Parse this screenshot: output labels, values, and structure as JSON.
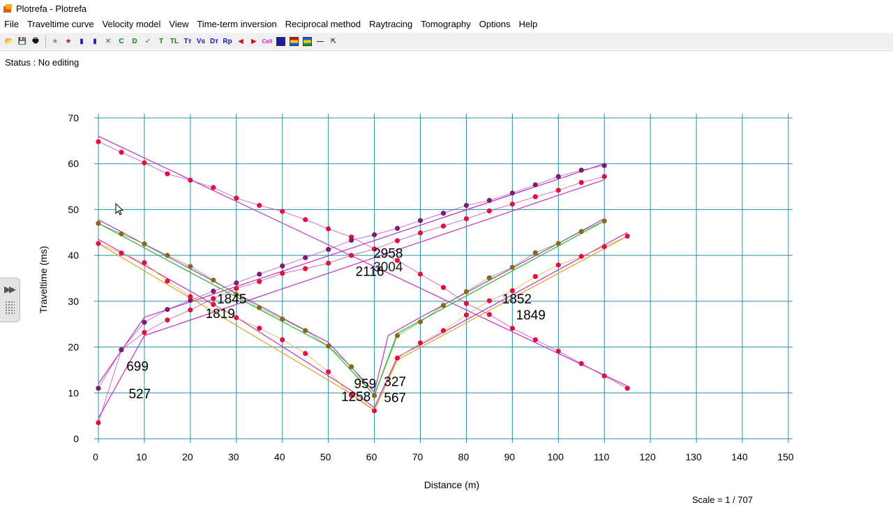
{
  "window": {
    "title": "Plotrefa - Plotrefa"
  },
  "menu": [
    "File",
    "Traveltime curve",
    "Velocity model",
    "View",
    "Time-term inversion",
    "Reciprocal method",
    "Raytracing",
    "Tomography",
    "Options",
    "Help"
  ],
  "toolbar": {
    "buttons": [
      {
        "name": "open-icon",
        "glyph": "📂"
      },
      {
        "name": "save-icon",
        "glyph": "💾"
      },
      {
        "name": "print-icon",
        "glyph": "🖶"
      },
      {
        "sep": true
      },
      {
        "name": "star-gray-icon",
        "glyph": "★",
        "color": "#888888"
      },
      {
        "name": "star-red-icon",
        "glyph": "★",
        "color": "#d0101a"
      },
      {
        "name": "shot-button-1",
        "glyph": "▮",
        "color": "#1a1ab0"
      },
      {
        "name": "shot-button-2",
        "glyph": "▮",
        "color": "#1a1ab0"
      },
      {
        "name": "delete-shot-button",
        "glyph": "✕",
        "color": "#108010"
      },
      {
        "name": "c-button",
        "glyph": "C",
        "color": "#108010"
      },
      {
        "name": "d-button",
        "glyph": "D",
        "color": "#108010"
      },
      {
        "name": "check-button",
        "glyph": "✓",
        "color": "#108010"
      },
      {
        "name": "t-button",
        "glyph": "T",
        "color": "#108010"
      },
      {
        "name": "tl-button",
        "glyph": "TL",
        "color": "#108010"
      },
      {
        "name": "tt-button",
        "glyph": "Tт",
        "color": "#1a1ab0"
      },
      {
        "name": "vs-button",
        "glyph": "Vs",
        "color": "#1a1ab0"
      },
      {
        "name": "dt-button",
        "glyph": "Dт",
        "color": "#1a1ab0"
      },
      {
        "name": "rp-button",
        "glyph": "Rp",
        "color": "#1a1ab0"
      },
      {
        "name": "arrow-left-icon",
        "glyph": "◀",
        "color": "#d0101a"
      },
      {
        "name": "arrow-right-icon",
        "glyph": "▶",
        "color": "#d0101a"
      },
      {
        "name": "cell-button",
        "glyph": "Cell",
        "color": "#d020d0"
      },
      {
        "name": "color-square-blue",
        "swatch": "#1a1ab0"
      },
      {
        "name": "color-square-rainbow-1",
        "swatch": "rainbow"
      },
      {
        "name": "color-square-rainbow-2",
        "swatch": "rainbow2"
      },
      {
        "name": "line-icon",
        "glyph": "—",
        "color": "#333333"
      },
      {
        "name": "pointer-icon",
        "glyph": "⇱",
        "color": "#333333"
      }
    ]
  },
  "status": {
    "text": "Status : No editing"
  },
  "scale": {
    "text": "Scale = 1 / 707"
  },
  "chart_data": {
    "type": "scatter",
    "xlabel": "Distance (m)",
    "ylabel": "Traveltime (ms)",
    "xlim": [
      0,
      150
    ],
    "ylim": [
      0,
      70
    ],
    "xticks": [
      0,
      10,
      20,
      30,
      40,
      50,
      60,
      70,
      80,
      90,
      100,
      110,
      120,
      130,
      140,
      150
    ],
    "yticks": [
      0,
      10,
      20,
      30,
      40,
      50,
      60,
      70
    ],
    "grid": true,
    "grid_color": "#2a8ca8",
    "series": [
      {
        "obs_color": "#e01040",
        "line_color": "#c030c0",
        "obs": [
          [
            0,
            64.8
          ],
          [
            5,
            62.5
          ],
          [
            10,
            60.2
          ],
          [
            15,
            57.8
          ],
          [
            20,
            56.4
          ],
          [
            25,
            54.8
          ],
          [
            30,
            52.5
          ],
          [
            35,
            50.9
          ],
          [
            40,
            49.6
          ],
          [
            45,
            47.8
          ],
          [
            50,
            45.8
          ],
          [
            55,
            44.0
          ],
          [
            60,
            41.4
          ],
          [
            65,
            38.9
          ],
          [
            70,
            35.9
          ],
          [
            75,
            33.0
          ],
          [
            80,
            29.5
          ],
          [
            85,
            27.1
          ],
          [
            90,
            24.1
          ],
          [
            95,
            21.6
          ],
          [
            100,
            19.1
          ],
          [
            105,
            16.4
          ],
          [
            110,
            13.7
          ],
          [
            115,
            11.0
          ]
        ],
        "calc": [
          [
            0,
            66.0
          ],
          [
            115,
            11.5
          ]
        ]
      },
      {
        "obs_color": "#e01040",
        "line_color": "#c030c0",
        "obs": [
          [
            0,
            3.5
          ],
          [
            5,
            19.4
          ],
          [
            10,
            23.2
          ],
          [
            15,
            25.9
          ],
          [
            20,
            28.1
          ],
          [
            25,
            30.6
          ],
          [
            30,
            32.8
          ],
          [
            35,
            34.3
          ],
          [
            40,
            36.1
          ],
          [
            45,
            37.1
          ],
          [
            50,
            38.3
          ],
          [
            55,
            40.0
          ],
          [
            60,
            41.4
          ],
          [
            65,
            43.2
          ],
          [
            70,
            44.9
          ],
          [
            75,
            46.4
          ],
          [
            80,
            48.0
          ],
          [
            85,
            49.7
          ],
          [
            90,
            51.2
          ],
          [
            95,
            52.8
          ],
          [
            100,
            54.2
          ],
          [
            105,
            55.9
          ],
          [
            110,
            57.2
          ]
        ],
        "calc": [
          [
            0,
            4.5
          ],
          [
            10,
            22.5
          ],
          [
            110,
            56.5
          ]
        ]
      },
      {
        "obs_color": "#7a1f6e",
        "line_color": "#c030c0",
        "obs": [
          [
            0,
            11.0
          ],
          [
            5,
            19.4
          ],
          [
            10,
            25.4
          ],
          [
            15,
            28.2
          ],
          [
            20,
            30.2
          ],
          [
            25,
            32.2
          ],
          [
            30,
            34.0
          ],
          [
            35,
            35.9
          ],
          [
            40,
            37.7
          ],
          [
            45,
            39.5
          ],
          [
            50,
            41.3
          ],
          [
            55,
            43.3
          ],
          [
            60,
            44.5
          ],
          [
            65,
            45.9
          ],
          [
            70,
            47.6
          ],
          [
            75,
            49.2
          ],
          [
            80,
            50.9
          ],
          [
            85,
            52.0
          ],
          [
            90,
            53.6
          ],
          [
            95,
            55.4
          ],
          [
            100,
            57.2
          ],
          [
            105,
            58.6
          ],
          [
            110,
            59.6
          ]
        ],
        "calc": [
          [
            0,
            12.0
          ],
          [
            10,
            26.5
          ],
          [
            110,
            60.0
          ]
        ]
      },
      {
        "obs_color": "#e01040",
        "line_color": "#e0a020",
        "obs": [
          [
            0,
            42.6
          ],
          [
            5,
            40.5
          ],
          [
            10,
            38.4
          ],
          [
            15,
            34.4
          ],
          [
            20,
            31.0
          ],
          [
            25,
            29.3
          ],
          [
            30,
            26.4
          ],
          [
            35,
            24.1
          ],
          [
            40,
            21.6
          ],
          [
            45,
            18.6
          ],
          [
            50,
            14.6
          ],
          [
            55,
            9.5
          ],
          [
            60,
            6.1
          ],
          [
            65,
            17.6
          ],
          [
            70,
            20.9
          ],
          [
            75,
            23.6
          ],
          [
            80,
            27.0
          ],
          [
            85,
            30.1
          ],
          [
            90,
            32.3
          ],
          [
            95,
            35.4
          ],
          [
            100,
            37.9
          ],
          [
            105,
            39.8
          ],
          [
            110,
            41.9
          ],
          [
            115,
            44.2
          ]
        ],
        "calc": [
          [
            0,
            42.6
          ],
          [
            55,
            9.8
          ],
          [
            60,
            6.2
          ],
          [
            65,
            17.2
          ],
          [
            115,
            44.2
          ]
        ]
      },
      {
        "obs_color": "#7a1f6e",
        "line_color": "#c030c0",
        "obs": [],
        "calc": [
          [
            0,
            43.5
          ],
          [
            30,
            26.5
          ],
          [
            55,
            10.5
          ],
          [
            60,
            6.8
          ],
          [
            65,
            17.8
          ],
          [
            115,
            45.0
          ]
        ]
      },
      {
        "obs_color": "#8a6a1a",
        "line_color": "#30b030",
        "obs": [
          [
            0,
            47.0
          ],
          [
            5,
            44.7
          ],
          [
            10,
            42.5
          ],
          [
            15,
            40.0
          ],
          [
            20,
            37.6
          ],
          [
            25,
            34.6
          ],
          [
            30,
            31.5
          ],
          [
            35,
            28.6
          ],
          [
            40,
            26.1
          ],
          [
            45,
            23.6
          ],
          [
            50,
            20.2
          ],
          [
            55,
            15.7
          ],
          [
            60,
            9.4
          ],
          [
            65,
            22.5
          ],
          [
            70,
            25.5
          ],
          [
            75,
            29.1
          ],
          [
            80,
            32.1
          ],
          [
            85,
            35.1
          ],
          [
            90,
            37.4
          ],
          [
            95,
            40.6
          ],
          [
            100,
            42.6
          ],
          [
            105,
            45.2
          ],
          [
            110,
            47.5
          ]
        ],
        "calc": [
          [
            0,
            47.0
          ],
          [
            50,
            20.2
          ],
          [
            60,
            9.5
          ],
          [
            65,
            23.0
          ],
          [
            110,
            47.5
          ]
        ]
      },
      {
        "obs_color": "#7a1f6e",
        "line_color": "#c030c0",
        "obs": [],
        "calc": [
          [
            0,
            47.8
          ],
          [
            50,
            21.0
          ],
          [
            60,
            10.2
          ],
          [
            63,
            22.5
          ],
          [
            70,
            26.5
          ],
          [
            110,
            48.0
          ]
        ]
      }
    ],
    "annotations": [
      {
        "text": "2958",
        "x": 63,
        "y": 39.5
      },
      {
        "text": "3004",
        "x": 63,
        "y": 36.5,
        "partial": true
      },
      {
        "text": "2116",
        "x": 59,
        "y": 35.5
      },
      {
        "text": "1845",
        "x": 29,
        "y": 29.5
      },
      {
        "text": "1819",
        "x": 26.5,
        "y": 26.3
      },
      {
        "text": "1852",
        "x": 91,
        "y": 29.5
      },
      {
        "text": "1849",
        "x": 94,
        "y": 26.0
      },
      {
        "text": "699",
        "x": 8.5,
        "y": 14.8
      },
      {
        "text": "527",
        "x": 9,
        "y": 8.8
      },
      {
        "text": "959",
        "x": 58,
        "y": 11.0
      },
      {
        "text": "1258",
        "x": 56,
        "y": 8.2
      },
      {
        "text": "327",
        "x": 64.5,
        "y": 11.5
      },
      {
        "text": "567",
        "x": 64.5,
        "y": 8.0
      }
    ]
  }
}
